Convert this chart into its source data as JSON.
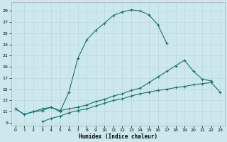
{
  "xlabel": "Humidex (Indice chaleur)",
  "background_color": "#cce8ec",
  "grid_color": "#b8d8dc",
  "line_color": "#1a7070",
  "xlim": [
    -0.5,
    23.5
  ],
  "ylim": [
    8.5,
    30.5
  ],
  "xticks": [
    0,
    1,
    2,
    3,
    4,
    5,
    6,
    7,
    8,
    9,
    10,
    11,
    12,
    13,
    14,
    15,
    16,
    17,
    18,
    19,
    20,
    21,
    22,
    23
  ],
  "yticks": [
    9,
    11,
    13,
    15,
    17,
    19,
    21,
    23,
    25,
    27,
    29
  ],
  "curve1_x": [
    0,
    1,
    2,
    3,
    4,
    5,
    6,
    7,
    8,
    9,
    10,
    11,
    12,
    13,
    14,
    15,
    16,
    17
  ],
  "curve1_y": [
    11.5,
    10.5,
    11.0,
    11.2,
    11.8,
    11.0,
    14.5,
    20.5,
    23.8,
    25.5,
    26.8,
    28.2,
    28.8,
    29.2,
    29.0,
    28.3,
    26.5,
    23.2
  ],
  "curve2_x": [
    0,
    1,
    2,
    3,
    4,
    5,
    6,
    7,
    8,
    9,
    10,
    11,
    12,
    13,
    14,
    15,
    16,
    17,
    18,
    19,
    20,
    21,
    22
  ],
  "curve2_y": [
    11.5,
    10.5,
    11.0,
    11.5,
    11.8,
    11.2,
    11.5,
    11.8,
    12.2,
    12.8,
    13.2,
    13.8,
    14.2,
    14.8,
    15.2,
    16.2,
    17.2,
    18.2,
    19.2,
    20.2,
    18.2,
    16.8,
    16.5
  ],
  "curve3_x": [
    3,
    4,
    5,
    6,
    7,
    8,
    9,
    10,
    11,
    12,
    13,
    14,
    15,
    16,
    17,
    18,
    19,
    20,
    21,
    22,
    23
  ],
  "curve3_y": [
    9.2,
    9.8,
    10.2,
    10.8,
    11.2,
    11.5,
    12.0,
    12.5,
    13.0,
    13.3,
    13.8,
    14.2,
    14.5,
    14.8,
    15.0,
    15.3,
    15.5,
    15.8,
    16.0,
    16.2,
    14.5
  ]
}
